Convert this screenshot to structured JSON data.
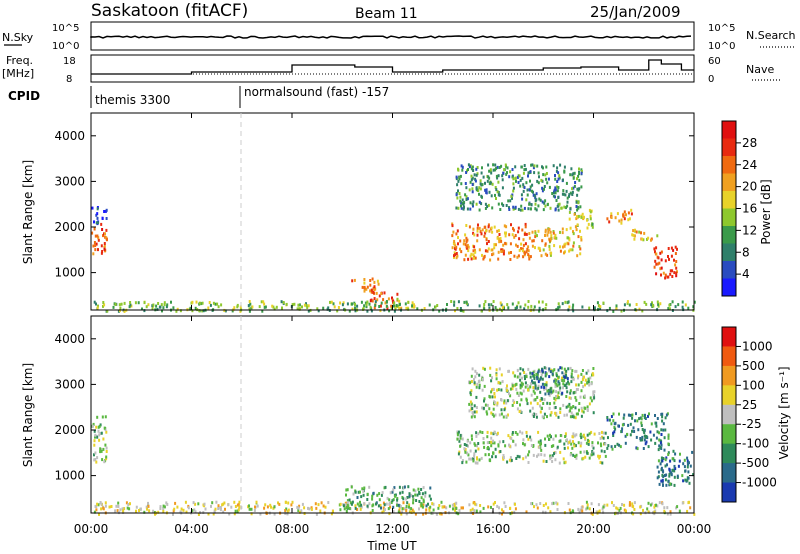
{
  "header": {
    "title": "Saskatoon (fitACF)",
    "beam": "Beam 11",
    "date": "25/Jan/2009"
  },
  "top_panels": {
    "nsky_label": "N.Sky",
    "nsearch_label": "N.Search",
    "freq_label_1": "Freq.",
    "freq_label_2": "[MHz]",
    "nave_label": "Nave",
    "cpid_label": "CPID",
    "left_ticks_counts": [
      "10^5",
      "10^0"
    ],
    "right_ticks_counts": [
      "10^5",
      "10^0"
    ],
    "left_ticks_freq": [
      "18",
      "8"
    ],
    "right_ticks_nave": [
      "60",
      "0"
    ],
    "cpid_1": "themis 3300",
    "cpid_2": "normalsound (fast) -157"
  },
  "x_axis": {
    "label": "Time UT",
    "ticks": [
      "00:00",
      "04:00",
      "08:00",
      "12:00",
      "16:00",
      "20:00",
      "00:00"
    ],
    "tick_hours": [
      0,
      4,
      8,
      12,
      16,
      20,
      24
    ]
  },
  "power_panel": {
    "ylabel": "Slant Range [km]",
    "yticks": [
      "1000",
      "2000",
      "3000",
      "4000"
    ],
    "ytick_values": [
      1000,
      2000,
      3000,
      4000
    ],
    "colorbar_label": "Power [dB]",
    "colorbar_ticks": [
      "4",
      "8",
      "12",
      "16",
      "20",
      "24",
      "28"
    ],
    "colors": [
      "#1a1aff",
      "#2a4cc0",
      "#2f7f6a",
      "#3a9a4a",
      "#8ec82e",
      "#e8d22a",
      "#f0a020",
      "#f06a10",
      "#e82a10",
      "#e01010"
    ]
  },
  "velocity_panel": {
    "ylabel": "Slant Range [km]",
    "yticks": [
      "1000",
      "2000",
      "3000",
      "4000"
    ],
    "ytick_values": [
      1000,
      2000,
      3000,
      4000
    ],
    "colorbar_label": "Velocity [m s⁻¹]",
    "colorbar_ticks": [
      "1000",
      "500",
      "100",
      "25",
      "-25",
      "-100",
      "-500",
      "-1000"
    ],
    "colors": [
      "#1a3ab0",
      "#2a6a8a",
      "#2e8a5a",
      "#5ab840",
      "#bfbfbf",
      "#e8d22a",
      "#f09a20",
      "#f05a10",
      "#e01010"
    ]
  },
  "chart_data": {
    "type": "heatmap",
    "x_range_hours": [
      0,
      24
    ],
    "y_range_km": [
      180,
      4500
    ],
    "power_blobs": [
      {
        "t0": 0.0,
        "t1": 0.6,
        "r0": 1400,
        "r1": 2100,
        "color_index": 8
      },
      {
        "t0": 0.0,
        "t1": 0.6,
        "r0": 2100,
        "r1": 2500,
        "color_index": 1
      },
      {
        "t0": 10.2,
        "t1": 11.5,
        "r0": 600,
        "r1": 900,
        "color_index": 7
      },
      {
        "t0": 11.0,
        "t1": 12.2,
        "r0": 250,
        "r1": 600,
        "color_index": 8
      },
      {
        "t0": 12.0,
        "t1": 13.0,
        "r0": 200,
        "r1": 450,
        "color_index": 5
      },
      {
        "t0": 14.3,
        "t1": 17.5,
        "r0": 1300,
        "r1": 2100,
        "color_index": 7
      },
      {
        "t0": 17.5,
        "t1": 19.5,
        "r0": 1400,
        "r1": 2000,
        "color_index": 6
      },
      {
        "t0": 19.0,
        "t1": 20.0,
        "r0": 2000,
        "r1": 2500,
        "color_index": 5
      },
      {
        "t0": 20.5,
        "t1": 21.5,
        "r0": 2100,
        "r1": 2400,
        "color_index": 7
      },
      {
        "t0": 21.5,
        "t1": 22.5,
        "r0": 1700,
        "r1": 2000,
        "color_index": 6
      },
      {
        "t0": 22.3,
        "t1": 23.3,
        "r0": 900,
        "r1": 1600,
        "color_index": 8
      },
      {
        "t0": 14.5,
        "t1": 19.5,
        "r0": 2400,
        "r1": 3400,
        "color_index": 3
      },
      {
        "t0": 0.0,
        "t1": 24.0,
        "r0": 180,
        "r1": 400,
        "color_index": 4
      }
    ],
    "velocity_blobs": [
      {
        "t0": 0.0,
        "t1": 0.6,
        "r0": 1300,
        "r1": 2400,
        "color_index": 4
      },
      {
        "t0": 14.5,
        "t1": 20.5,
        "r0": 1300,
        "r1": 2000,
        "color_index": 4
      },
      {
        "t0": 15.0,
        "t1": 20.0,
        "r0": 2300,
        "r1": 3400,
        "color_index": 4
      },
      {
        "t0": 20.5,
        "t1": 23.0,
        "r0": 1600,
        "r1": 2400,
        "color_index": 2
      },
      {
        "t0": 22.5,
        "t1": 24.0,
        "r0": 800,
        "r1": 1600,
        "color_index": 2
      },
      {
        "t0": 17.5,
        "t1": 19.0,
        "r0": 2800,
        "r1": 3400,
        "color_index": 2
      },
      {
        "t0": 0.0,
        "t1": 24.0,
        "r0": 180,
        "r1": 450,
        "color_index": 5
      },
      {
        "t0": 10.0,
        "t1": 13.5,
        "r0": 300,
        "r1": 800,
        "color_index": 3
      }
    ]
  }
}
